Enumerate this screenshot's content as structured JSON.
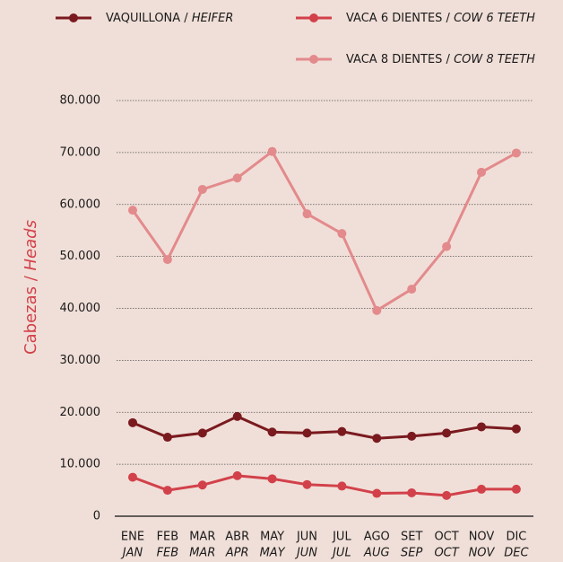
{
  "chart_data": {
    "type": "line",
    "y_label": "Cabezas / Heads",
    "categories": [
      "ENE",
      "FEB",
      "MAR",
      "ABR",
      "MAY",
      "JUN",
      "JUL",
      "AGO",
      "SET",
      "OCT",
      "NOV",
      "DIC"
    ],
    "categories_en": [
      "JAN",
      "FEB",
      "MAR",
      "APR",
      "MAY",
      "JUN",
      "JUL",
      "AUG",
      "SEP",
      "OCT",
      "NOV",
      "DEC"
    ],
    "series": [
      {
        "name": "VAQUILLONA / HEIFER",
        "color": "#7a1a1f",
        "values": [
          18000,
          15200,
          16000,
          19200,
          16200,
          16000,
          16300,
          15000,
          15400,
          16000,
          17200,
          16800
        ]
      },
      {
        "name": "VACA 6 DIENTES / COW 6 TEETH",
        "color": "#d2414a",
        "values": [
          7500,
          5000,
          6000,
          7800,
          7200,
          6100,
          5800,
          4400,
          4500,
          4000,
          5200,
          5200
        ]
      },
      {
        "name": "VACA 8 DIENTES / COW 8 TEETH",
        "color": "#e38a8c",
        "values": [
          58900,
          49400,
          62900,
          65100,
          70200,
          58200,
          54400,
          39600,
          43700,
          51900,
          66200,
          69900
        ]
      }
    ],
    "ylim": [
      0,
      80000
    ],
    "yticks": [
      0,
      {
        "value": 10000,
        "label": "10.000"
      },
      {
        "value": 20000,
        "label": "20.000"
      },
      {
        "value": 30000,
        "label": "30.000"
      },
      {
        "value": 40000,
        "label": "40.000"
      },
      {
        "value": 50000,
        "label": "50.000"
      },
      {
        "value": 60000,
        "label": "60.000"
      },
      {
        "value": 70000,
        "label": "70.000"
      },
      {
        "value": 80000,
        "label": "80.000"
      }
    ],
    "grid": true
  }
}
